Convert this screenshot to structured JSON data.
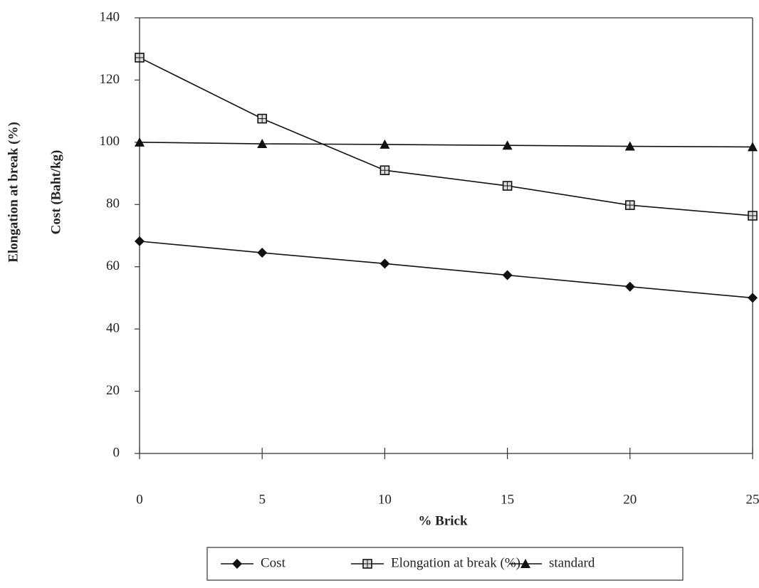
{
  "chart_data": {
    "type": "line",
    "xlabel": "% Brick",
    "ylabel": [
      "Elongation at break (%)",
      "Cost  (Baht/kg)"
    ],
    "x": [
      0,
      5,
      10,
      15,
      20,
      25
    ],
    "series": [
      {
        "name": "Cost",
        "color": "#111111",
        "marker": "diamond",
        "values": [
          68.2,
          64.5,
          61,
          57.3,
          53.6,
          50
        ]
      },
      {
        "name": "Elongation at break (%)",
        "color": "#111111",
        "marker": "square",
        "values": [
          127.2,
          107.6,
          91,
          86,
          79.8,
          76.4
        ]
      },
      {
        "name": "standard",
        "color": "#111111",
        "marker": "triangle",
        "values": [
          100,
          99.5,
          99.3,
          99,
          98.7,
          98.5
        ]
      }
    ],
    "xlim": [
      0,
      25
    ],
    "xticks": [
      0,
      5,
      10,
      15,
      20,
      25
    ],
    "ylim": [
      0,
      140
    ],
    "yticks": [
      0,
      20,
      40,
      60,
      80,
      100,
      120,
      140
    ],
    "legend": "bottom"
  }
}
